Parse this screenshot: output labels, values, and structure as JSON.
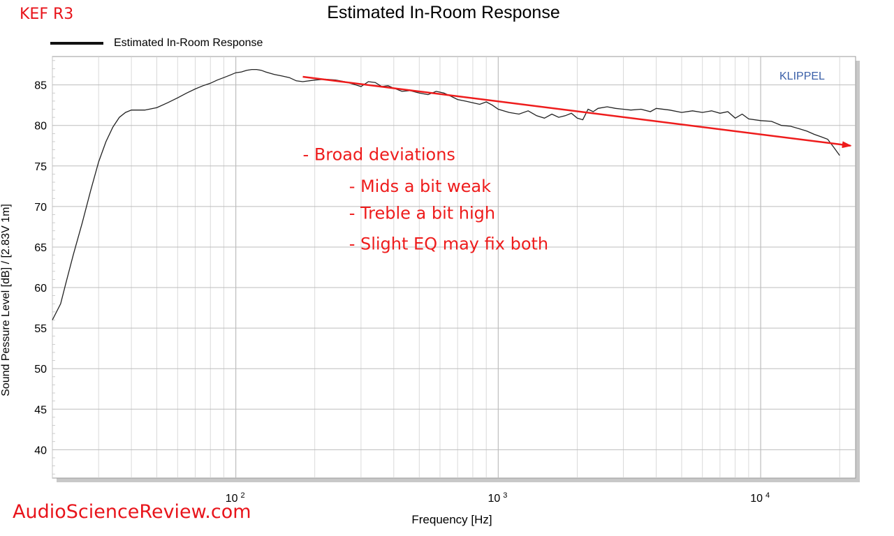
{
  "header": {
    "brand": "KEF R3",
    "title": "Estimated In-Room Response"
  },
  "footer": {
    "watermark": "AudioScienceReview.com"
  },
  "colors": {
    "curve": "#222222",
    "annotation": "#ee1c1c",
    "klippel": "#3a5fa8",
    "grid": "#d0d0d0"
  },
  "chart_data": {
    "type": "line",
    "title": "Estimated In-Room Response",
    "xlabel": "Frequency [Hz]",
    "ylabel": "Sound Pessure Level [dB]  / [2.83V 1m]",
    "xscale": "log",
    "xlim": [
      20,
      23000
    ],
    "ylim": [
      36.5,
      88.5
    ],
    "yticks": [
      40,
      45,
      50,
      55,
      60,
      65,
      70,
      75,
      80,
      85
    ],
    "xticks": [
      {
        "value": 100,
        "base": "10",
        "exp": "2"
      },
      {
        "value": 1000,
        "base": "10",
        "exp": "3"
      },
      {
        "value": 10000,
        "base": "10",
        "exp": "4"
      }
    ],
    "grid": true,
    "legend": {
      "position": "top-left",
      "label": "Estimated In-Room Response"
    },
    "logo": "KLIPPEL",
    "series": [
      {
        "name": "Estimated In-Room Response",
        "x": [
          20,
          21.5,
          22.5,
          24,
          26,
          28,
          30,
          32,
          34,
          36,
          38,
          40,
          42,
          45,
          50,
          55,
          60,
          65,
          70,
          75,
          80,
          85,
          90,
          95,
          100,
          105,
          110,
          115,
          120,
          125,
          130,
          140,
          150,
          160,
          170,
          180,
          200,
          220,
          240,
          260,
          280,
          300,
          320,
          340,
          360,
          380,
          400,
          430,
          460,
          500,
          540,
          580,
          620,
          660,
          700,
          750,
          800,
          850,
          900,
          950,
          1000,
          1100,
          1200,
          1300,
          1400,
          1500,
          1600,
          1700,
          1800,
          1900,
          2000,
          2100,
          2200,
          2300,
          2400,
          2600,
          2800,
          3000,
          3200,
          3500,
          3800,
          4000,
          4500,
          5000,
          5500,
          6000,
          6500,
          7000,
          7500,
          8000,
          8500,
          9000,
          10000,
          11000,
          12000,
          13000,
          14000,
          15000,
          16000,
          17000,
          18000,
          19000,
          20000
        ],
        "y": [
          56,
          58,
          60.5,
          64,
          68,
          72,
          75.5,
          78,
          79.8,
          81,
          81.6,
          81.9,
          81.9,
          81.9,
          82.2,
          82.8,
          83.4,
          84,
          84.5,
          84.9,
          85.2,
          85.6,
          85.9,
          86.2,
          86.5,
          86.6,
          86.8,
          86.9,
          86.9,
          86.8,
          86.6,
          86.3,
          86.1,
          85.9,
          85.5,
          85.4,
          85.6,
          85.7,
          85.6,
          85.4,
          85.1,
          84.8,
          85.4,
          85.3,
          84.8,
          84.9,
          84.6,
          84.2,
          84.3,
          84.0,
          83.8,
          84.2,
          84.0,
          83.6,
          83.2,
          83.0,
          82.8,
          82.6,
          82.9,
          82.5,
          82.0,
          81.6,
          81.4,
          81.8,
          81.2,
          80.9,
          81.4,
          81.0,
          81.2,
          81.5,
          80.9,
          80.7,
          82.0,
          81.7,
          82.1,
          82.3,
          82.1,
          82.0,
          81.9,
          82.0,
          81.7,
          82.1,
          81.9,
          81.6,
          81.8,
          81.6,
          81.8,
          81.5,
          81.7,
          80.9,
          81.4,
          80.8,
          80.6,
          80.5,
          80.0,
          79.9,
          79.6,
          79.3,
          78.9,
          78.6,
          78.3,
          77.3,
          76.3
        ]
      }
    ],
    "annotations": [
      {
        "text": "- Broad deviations",
        "x": 180,
        "y": 75.7
      },
      {
        "text": "- Mids a bit weak",
        "x": 270,
        "y": 71.8
      },
      {
        "text": "- Treble a bit high",
        "x": 270,
        "y": 68.5
      },
      {
        "text": "- Slight EQ may fix both",
        "x": 270,
        "y": 64.7
      }
    ],
    "trend_arrow": {
      "x1": 180,
      "y1": 86.0,
      "x2": 22000,
      "y2": 77.5
    }
  }
}
